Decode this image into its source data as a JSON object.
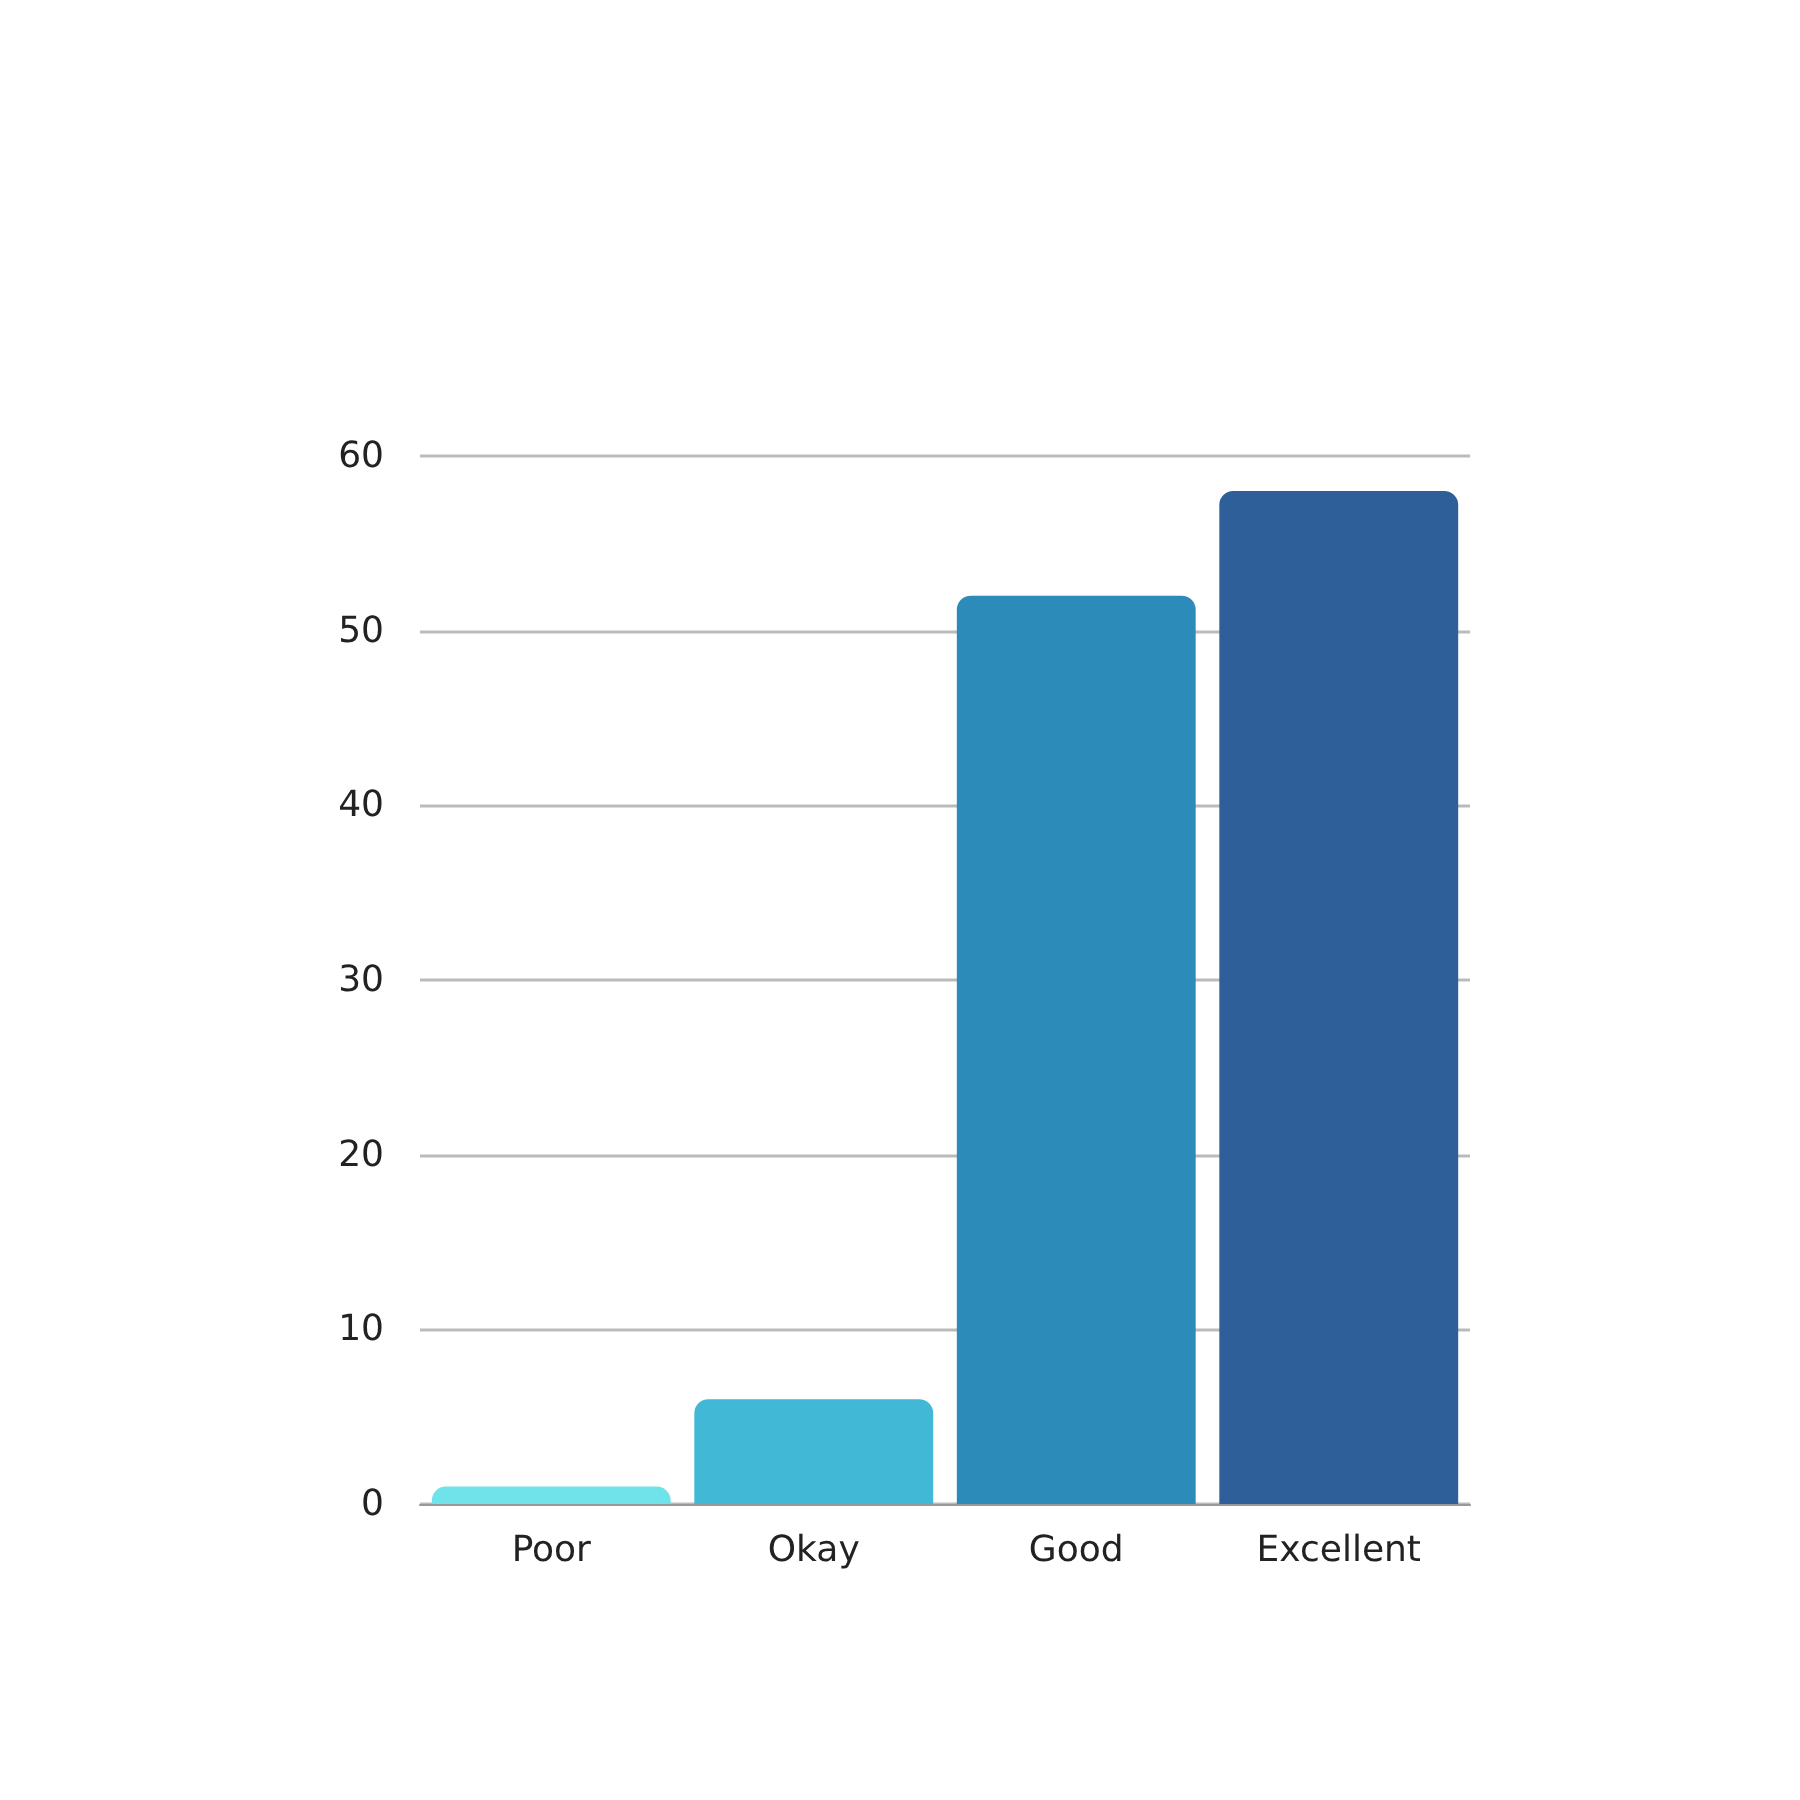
{
  "chart_data": {
    "type": "bar",
    "categories": [
      "Poor",
      "Okay",
      "Good",
      "Excellent"
    ],
    "values": [
      1,
      6,
      52,
      58
    ],
    "colors": [
      "#6ee3e9",
      "#41b8d5",
      "#2d8bba",
      "#2f5f98"
    ],
    "ylim": [
      0,
      60
    ],
    "yticks": [
      0,
      10,
      20,
      30,
      40,
      50,
      60
    ],
    "grid": "y"
  }
}
